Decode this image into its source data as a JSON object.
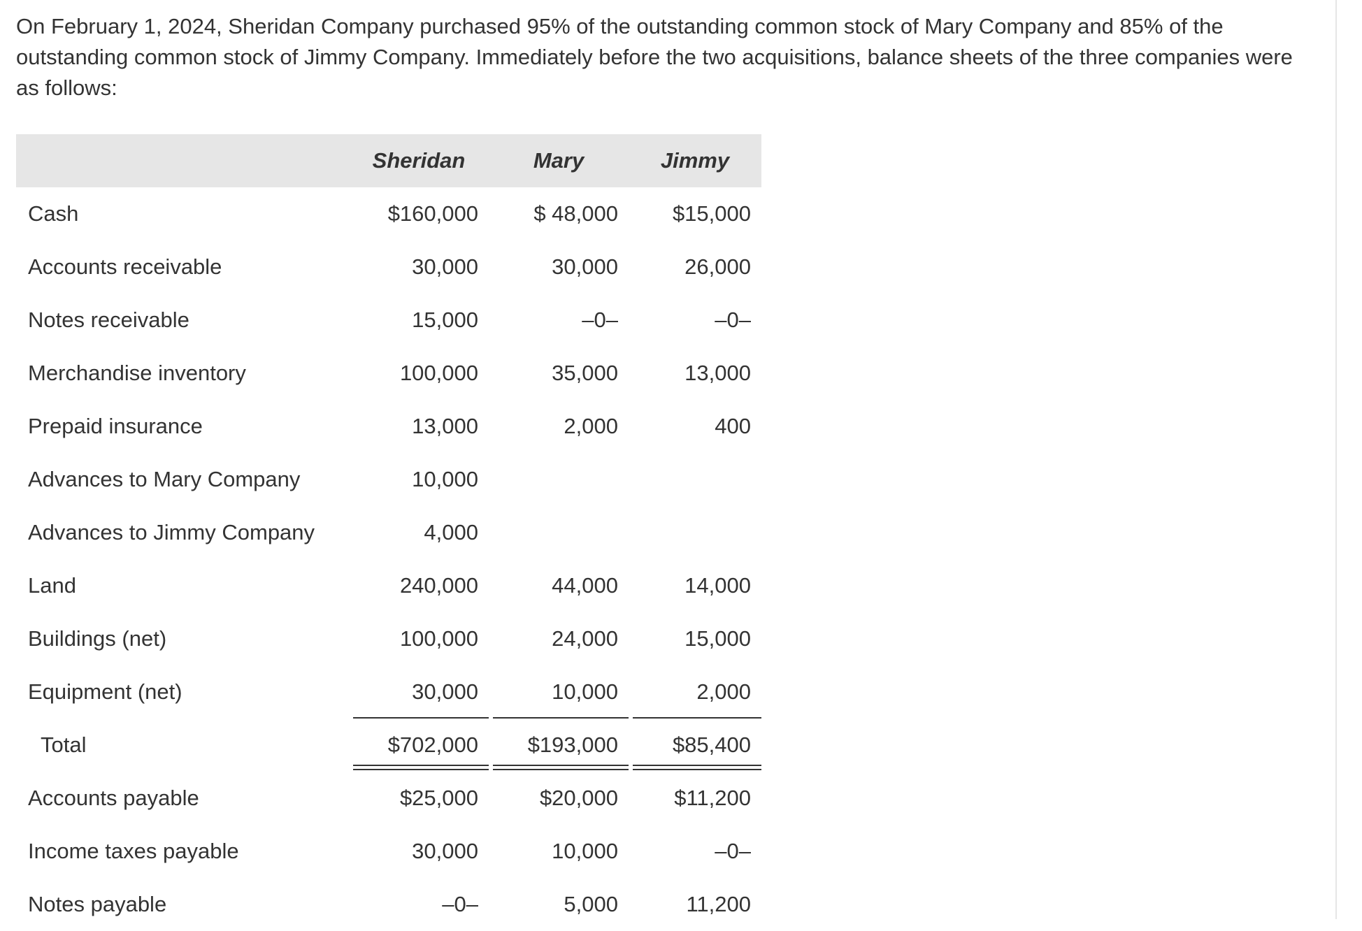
{
  "intro": "On February 1, 2024, Sheridan Company purchased 95% of the outstanding common stock of Mary Company and 85% of the outstanding common stock of Jimmy Company. Immediately before the two acquisitions, balance sheets of the three companies were as follows:",
  "table": {
    "headers": [
      "Sheridan",
      "Mary",
      "Jimmy"
    ],
    "rows": [
      {
        "label": "Cash",
        "values": [
          "$160,000",
          "$ 48,000",
          "$15,000"
        ]
      },
      {
        "label": "Accounts receivable",
        "values": [
          "30,000",
          "30,000",
          "26,000"
        ]
      },
      {
        "label": "Notes receivable",
        "values": [
          "15,000",
          "–0–",
          "–0–"
        ]
      },
      {
        "label": "Merchandise inventory",
        "values": [
          "100,000",
          "35,000",
          "13,000"
        ]
      },
      {
        "label": "Prepaid insurance",
        "values": [
          "13,000",
          "2,000",
          "400"
        ]
      },
      {
        "label": "Advances to Mary Company",
        "values": [
          "10,000",
          "",
          ""
        ]
      },
      {
        "label": "Advances to Jimmy Company",
        "values": [
          "4,000",
          "",
          ""
        ]
      },
      {
        "label": "Land",
        "values": [
          "240,000",
          "44,000",
          "14,000"
        ]
      },
      {
        "label": "Buildings (net)",
        "values": [
          "100,000",
          "24,000",
          "15,000"
        ]
      },
      {
        "label": "Equipment (net)",
        "values": [
          "30,000",
          "10,000",
          "2,000"
        ]
      },
      {
        "label": "Total",
        "values": [
          "$702,000",
          "$193,000",
          "$85,400"
        ]
      },
      {
        "label": "Accounts payable",
        "values": [
          "$25,000",
          "$20,000",
          "$11,200"
        ]
      },
      {
        "label": "Income taxes payable",
        "values": [
          "30,000",
          "10,000",
          "–0–"
        ]
      },
      {
        "label": "Notes payable",
        "values": [
          "–0–",
          "5,000",
          "11,200"
        ]
      }
    ]
  }
}
